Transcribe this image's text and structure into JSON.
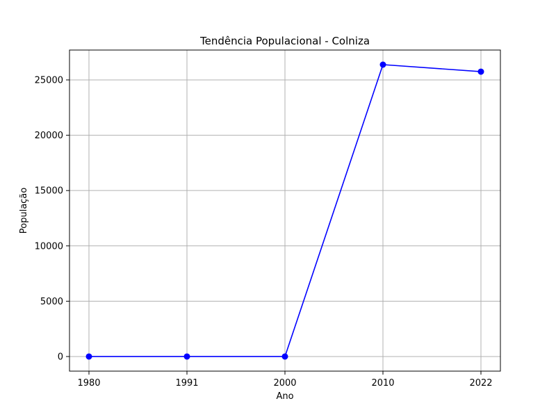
{
  "chart_data": {
    "type": "line",
    "title": "Tendência Populacional - Colniza",
    "xlabel": "Ano",
    "ylabel": "População",
    "categories": [
      "1980",
      "1991",
      "2000",
      "2010",
      "2022"
    ],
    "series": [
      {
        "values": [
          0,
          0,
          0,
          26381,
          25748
        ]
      }
    ],
    "yticks": [
      0,
      5000,
      10000,
      15000,
      20000,
      25000
    ],
    "ylim": [
      -1320,
      27700
    ],
    "grid": true,
    "colors": {
      "line": "#0000ff",
      "marker": "#0000ff",
      "grid": "#b0b0b0",
      "axes": "#000000"
    }
  }
}
